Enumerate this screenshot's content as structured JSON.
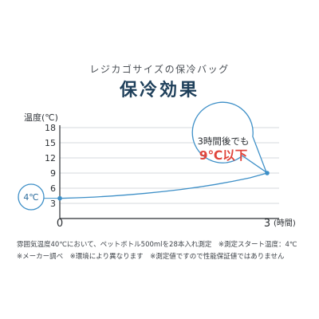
{
  "header": {
    "subtitle": "レジカゴサイズの保冷バッグ",
    "title": "保冷効果"
  },
  "chart_data": {
    "type": "line",
    "ylabel": "温度(℃)",
    "yticks": [
      3,
      6,
      9,
      12,
      15,
      18
    ],
    "ylim": [
      0,
      18
    ],
    "xlim": [
      0,
      3
    ],
    "xticks": [
      {
        "value": 0,
        "label": "0"
      },
      {
        "value": 3,
        "label": "3"
      }
    ],
    "xunit": "(時間)",
    "grid": true,
    "series": [
      {
        "x": [
          0,
          0.25,
          0.5,
          0.75,
          1.0,
          1.25,
          1.5,
          1.75,
          2.0,
          2.25,
          2.5,
          2.75,
          3.0
        ],
        "y": [
          4.0,
          4.1,
          4.25,
          4.45,
          4.7,
          5.0,
          5.35,
          5.75,
          6.2,
          6.75,
          7.35,
          8.05,
          9.0
        ],
        "color": "#3d8fc7"
      }
    ],
    "annotations": {
      "start_label": "4℃",
      "end_label_line1": "3時間後でも",
      "end_label_line2": "9℃以下"
    }
  },
  "notes": {
    "line1": "雰囲気温度40℃において、ペットボトル500mlを28本入れ測定　※測定スタート温度：4℃",
    "line2": "※メーカー調べ　※環境により異なります　※測定値ですので性能保証値ではありません"
  },
  "colors": {
    "line": "#3d8fc7",
    "highlight": "#e0443b",
    "title": "#1e3f5a",
    "grid": "#c7ccd1",
    "axis": "#2b2f33"
  }
}
